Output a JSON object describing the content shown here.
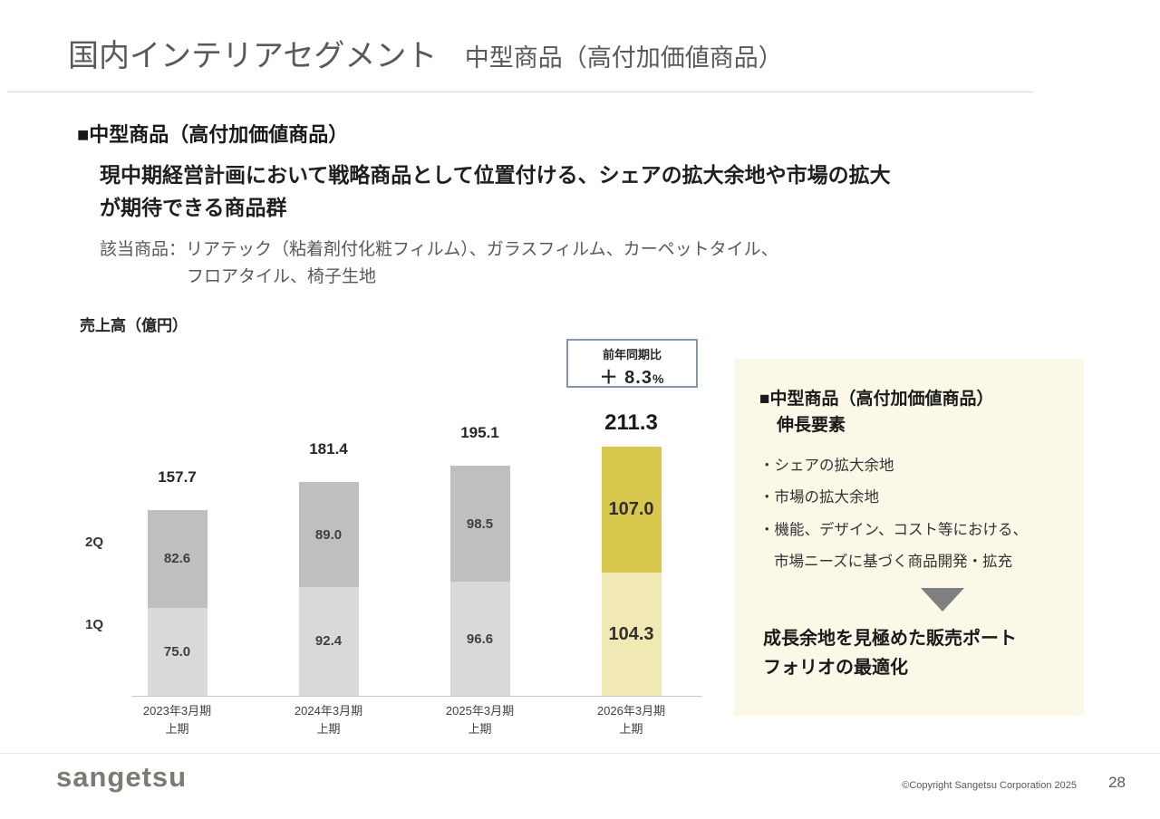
{
  "header": {
    "title_main": "国内インテリアセグメント",
    "title_sub": "中型商品（高付加価値商品）"
  },
  "intro": {
    "section_heading": "■中型商品（高付加価値商品）",
    "lead_lines": [
      "現中期経営計画において戦略商品として位置付ける、シェアの拡大余地や市場の拡大",
      "が期待できる商品群"
    ],
    "products_line1": "該当商品：リアテック（粘着剤付化粧フィルム）、ガラスフィルム、カーペットタイル、",
    "products_line2": "フロアタイル、椅子生地"
  },
  "chart_data": {
    "type": "bar",
    "stacked": true,
    "title": "売上高（億円）",
    "ylabel": "売上高（億円）",
    "categories": [
      "2023年3月期",
      "2024年3月期",
      "2025年3月期",
      "2026年3月期"
    ],
    "category_sub": "上期",
    "series": [
      {
        "name": "1Q",
        "values": [
          75.0,
          92.4,
          96.6,
          104.3
        ],
        "labels": [
          "75.0",
          "92.4",
          "96.6",
          "104.3"
        ]
      },
      {
        "name": "2Q",
        "values": [
          82.6,
          89.0,
          98.5,
          107.0
        ],
        "labels": [
          "82.6",
          "89.0",
          "98.5",
          "107.0"
        ]
      }
    ],
    "totals": [
      157.7,
      181.4,
      195.1,
      211.3
    ],
    "total_labels": [
      "157.7",
      "181.4",
      "195.1",
      "211.3"
    ],
    "highlight_index": 3,
    "annotation": {
      "line1": "前年同期比",
      "value": "＋ 8.3",
      "unit": "%"
    },
    "axis_labels": {
      "q2": "2Q",
      "q1": "1Q"
    },
    "colors": {
      "segment_1q": "#d9d9d9",
      "segment_2q": "#bfbfbf",
      "highlight_1q": "#f1e9b4",
      "highlight_2q": "#d8c74d"
    },
    "legend_position": "left-axis",
    "grid": false
  },
  "panel": {
    "heading_line1": "■中型商品（高付加価値商品）",
    "heading_line2": "伸長要素",
    "bullets": [
      "・シェアの拡大余地",
      "・市場の拡大余地",
      "・機能、デザイン、コスト等における、",
      "市場ニーズに基づく商品開発・拡充"
    ],
    "conclusion_lines": [
      "成長余地を見極めた販売ポート",
      "フォリオの最適化"
    ]
  },
  "footer": {
    "logo": "sangetsu",
    "copyright": "©Copyright Sangetsu Corporation 2025",
    "page_number": "28"
  }
}
